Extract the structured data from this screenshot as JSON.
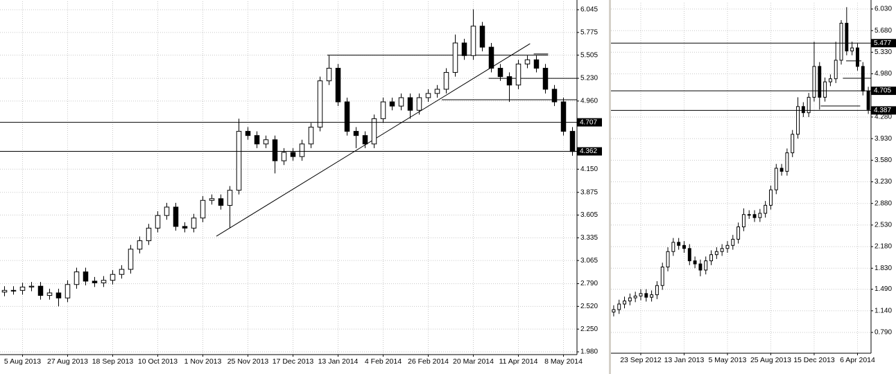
{
  "chart_data": [
    {
      "type": "candlestick",
      "ylim": [
        1.947,
        6.144
      ],
      "yticks": [
        6.045,
        5.775,
        5.505,
        {
          "value": 5.23,
          "label": "5.230"
        },
        {
          "value": 4.96,
          "label": "4.960"
        },
        {
          "value": 4.15,
          "label": "4.150"
        },
        3.875,
        3.605,
        3.335,
        3.065,
        {
          "value": 2.79,
          "label": "2.790"
        },
        {
          "value": 2.52,
          "label": "2.520"
        },
        {
          "value": 2.25,
          "label": "2.250"
        },
        {
          "value": 1.98,
          "label": "1.980"
        }
      ],
      "categories": [
        null,
        null,
        "5 Aug 2013",
        null,
        null,
        null,
        null,
        "27 Aug 2013",
        null,
        null,
        null,
        null,
        "18 Sep 2013",
        null,
        null,
        null,
        null,
        "10 Oct 2013",
        null,
        null,
        null,
        null,
        "1 Nov 2013",
        null,
        null,
        null,
        null,
        "25 Nov 2013",
        null,
        null,
        null,
        null,
        "17 Dec 2013",
        null,
        null,
        null,
        null,
        "13 Jan 2014",
        null,
        null,
        null,
        null,
        "4 Feb 2014",
        null,
        null,
        null,
        null,
        "26 Feb 2014",
        null,
        null,
        null,
        null,
        "20 Mar 2014",
        null,
        null,
        null,
        null,
        "11 Apr 2014",
        null,
        null,
        null,
        null,
        "8 May 2014",
        null
      ],
      "open": [
        2.69,
        2.71,
        2.71,
        2.75,
        2.76,
        2.65,
        2.68,
        2.62,
        2.78,
        2.93,
        2.82,
        2.8,
        2.83,
        2.9,
        2.96,
        3.2,
        3.3,
        3.45,
        3.6,
        3.7,
        3.47,
        3.45,
        3.57,
        3.78,
        3.8,
        3.72,
        3.9,
        4.6,
        4.55,
        4.45,
        4.5,
        4.25,
        4.35,
        4.3,
        4.45,
        4.65,
        5.2,
        5.35,
        4.95,
        4.6,
        4.55,
        4.45,
        4.75,
        4.95,
        4.9,
        5.0,
        4.85,
        5.0,
        5.05,
        5.1,
        5.3,
        5.65,
        5.5,
        5.85,
        5.6,
        5.35,
        5.25,
        5.15,
        5.4,
        5.45,
        5.35,
        5.1,
        4.95,
        4.6
      ],
      "high": [
        2.76,
        2.76,
        2.8,
        2.81,
        2.81,
        2.73,
        2.73,
        2.83,
        2.98,
        2.98,
        2.87,
        2.88,
        2.95,
        3.01,
        3.25,
        3.35,
        3.5,
        3.65,
        3.75,
        3.75,
        3.52,
        3.62,
        3.83,
        3.85,
        3.85,
        3.95,
        4.75,
        4.65,
        4.6,
        4.55,
        4.55,
        4.4,
        4.4,
        4.5,
        4.7,
        5.25,
        5.5,
        5.4,
        5.0,
        4.65,
        4.6,
        4.8,
        5.0,
        5.0,
        5.05,
        5.05,
        5.05,
        5.1,
        5.15,
        5.35,
        5.75,
        5.7,
        6.05,
        5.9,
        5.65,
        5.4,
        5.3,
        5.45,
        5.5,
        5.5,
        5.4,
        5.15,
        5.0,
        4.65
      ],
      "low": [
        2.64,
        2.66,
        2.66,
        2.7,
        2.6,
        2.6,
        2.52,
        2.57,
        2.73,
        2.77,
        2.75,
        2.75,
        2.78,
        2.85,
        2.91,
        3.15,
        3.25,
        3.4,
        3.55,
        3.42,
        3.4,
        3.4,
        3.52,
        3.73,
        3.67,
        3.45,
        3.85,
        4.5,
        4.4,
        4.4,
        4.1,
        4.2,
        4.25,
        4.25,
        4.4,
        4.6,
        5.15,
        4.9,
        4.55,
        4.4,
        4.4,
        4.4,
        4.7,
        4.85,
        4.85,
        4.75,
        4.8,
        4.95,
        5.0,
        5.05,
        5.25,
        5.45,
        5.45,
        5.55,
        5.3,
        5.2,
        4.95,
        5.1,
        5.35,
        5.3,
        5.05,
        4.9,
        4.55,
        4.31
      ],
      "close": [
        2.71,
        2.71,
        2.75,
        2.76,
        2.65,
        2.68,
        2.62,
        2.78,
        2.93,
        2.82,
        2.8,
        2.83,
        2.9,
        2.96,
        3.2,
        3.3,
        3.45,
        3.6,
        3.7,
        3.47,
        3.45,
        3.57,
        3.78,
        3.8,
        3.72,
        3.9,
        4.6,
        4.55,
        4.45,
        4.5,
        4.25,
        4.35,
        4.3,
        4.45,
        4.65,
        5.2,
        5.35,
        4.95,
        4.6,
        4.55,
        4.45,
        4.75,
        4.95,
        4.9,
        5.0,
        4.85,
        5.0,
        5.05,
        5.1,
        5.3,
        5.65,
        5.5,
        5.85,
        5.6,
        5.35,
        5.25,
        5.15,
        5.4,
        5.45,
        5.35,
        5.1,
        4.95,
        4.6,
        4.36
      ],
      "price_labels": [
        4.707,
        4.362
      ],
      "lines": [
        {
          "x": [
            23.5,
            58.3
          ],
          "y": [
            3.354,
            5.642
          ]
        },
        {
          "x": [
            35.8,
            60.3
          ],
          "y": [
            5.505,
            5.505
          ]
        },
        {
          "x": [
            53.7,
            63.5
          ],
          "y": [
            5.23,
            5.23
          ]
        },
        {
          "x": [
            48.5,
            63.5
          ],
          "y": [
            4.975,
            4.975
          ]
        },
        {
          "x": [
            58.7,
            60.3
          ],
          "y": [
            5.52,
            5.52
          ]
        }
      ]
    },
    {
      "type": "candlestick",
      "ylim": [
        0.453,
        6.131
      ],
      "yticks": [
        {
          "value": 6.03,
          "label": "6.030"
        },
        {
          "value": 5.68,
          "label": "5.680"
        },
        {
          "value": 5.33,
          "label": "5.330"
        },
        {
          "value": 4.98,
          "label": "4.980"
        },
        {
          "value": 4.28,
          "label": "4.280"
        },
        {
          "value": 3.93,
          "label": "3.930"
        },
        {
          "value": 3.58,
          "label": "3.580"
        },
        {
          "value": 3.23,
          "label": "3.230"
        },
        {
          "value": 2.88,
          "label": "2.880"
        },
        {
          "value": 2.53,
          "label": "2.530"
        },
        {
          "value": 2.18,
          "label": "2.180"
        },
        {
          "value": 1.83,
          "label": "1.830"
        },
        {
          "value": 1.49,
          "label": "1.490"
        },
        {
          "value": 1.14,
          "label": "1.140"
        },
        {
          "value": 0.79,
          "label": "0.790"
        }
      ],
      "categories": [
        null,
        null,
        null,
        null,
        null,
        "23 Sep 2012",
        null,
        null,
        null,
        null,
        null,
        null,
        null,
        "13 Jan 2013",
        null,
        null,
        null,
        null,
        null,
        null,
        null,
        "5 May 2013",
        null,
        null,
        null,
        null,
        null,
        null,
        null,
        "25 Aug 2013",
        null,
        null,
        null,
        null,
        null,
        null,
        null,
        "15 Dec 2013",
        null,
        null,
        null,
        null,
        null,
        null,
        null,
        "6 Apr 2014",
        null,
        null
      ],
      "open": [
        1.12,
        1.16,
        1.25,
        1.3,
        1.35,
        1.38,
        1.42,
        1.36,
        1.4,
        1.55,
        1.85,
        2.1,
        2.25,
        2.2,
        2.15,
        1.95,
        1.9,
        1.8,
        1.95,
        2.05,
        2.1,
        2.15,
        2.2,
        2.3,
        2.5,
        2.7,
        2.7,
        2.65,
        2.72,
        2.85,
        3.1,
        3.45,
        3.4,
        3.7,
        4.0,
        4.45,
        4.35,
        4.6,
        5.1,
        4.6,
        4.85,
        4.9,
        5.2,
        5.8,
        5.35,
        5.4,
        5.1,
        4.7
      ],
      "high": [
        1.23,
        1.32,
        1.37,
        1.42,
        1.45,
        1.49,
        1.49,
        1.47,
        1.62,
        1.92,
        2.17,
        2.32,
        2.32,
        2.27,
        2.22,
        2.02,
        1.97,
        2.02,
        2.12,
        2.17,
        2.22,
        2.27,
        2.37,
        2.57,
        2.8,
        2.77,
        2.77,
        2.79,
        2.92,
        3.17,
        3.52,
        3.52,
        3.77,
        4.07,
        4.6,
        4.52,
        4.67,
        5.5,
        5.17,
        4.92,
        4.97,
        5.5,
        5.85,
        6.06,
        5.5,
        5.47,
        5.17,
        4.77
      ],
      "low": [
        1.05,
        1.09,
        1.18,
        1.23,
        1.28,
        1.31,
        1.29,
        1.29,
        1.33,
        1.48,
        1.78,
        2.03,
        2.13,
        2.08,
        1.88,
        1.83,
        1.7,
        1.73,
        1.88,
        1.98,
        2.03,
        2.08,
        2.13,
        2.23,
        2.43,
        2.63,
        2.58,
        2.58,
        2.65,
        2.78,
        3.03,
        3.33,
        3.33,
        3.63,
        3.93,
        4.28,
        4.28,
        4.53,
        4.4,
        4.53,
        4.78,
        4.83,
        5.13,
        5.28,
        5.28,
        5.03,
        4.63,
        4.33
      ],
      "close": [
        1.16,
        1.25,
        1.3,
        1.35,
        1.38,
        1.42,
        1.36,
        1.4,
        1.55,
        1.85,
        2.1,
        2.25,
        2.2,
        2.15,
        1.95,
        1.9,
        1.8,
        1.95,
        2.05,
        2.1,
        2.15,
        2.2,
        2.3,
        2.5,
        2.7,
        2.7,
        2.65,
        2.72,
        2.85,
        3.1,
        3.45,
        3.4,
        3.7,
        4.0,
        4.45,
        4.35,
        4.6,
        5.1,
        4.6,
        4.85,
        4.9,
        5.2,
        5.8,
        5.35,
        5.4,
        5.1,
        4.7,
        4.4
      ],
      "price_labels": [
        5.477,
        4.705,
        4.387
      ],
      "lines": [
        {
          "x": [
            38.2,
            45.5
          ],
          "y": [
            4.459,
            4.459
          ]
        },
        {
          "x": [
            42.3,
            47.5
          ],
          "y": [
            4.908,
            4.908
          ]
        },
        {
          "x": [
            42.9,
            45.7
          ],
          "y": [
            5.19,
            5.19
          ]
        }
      ]
    }
  ]
}
